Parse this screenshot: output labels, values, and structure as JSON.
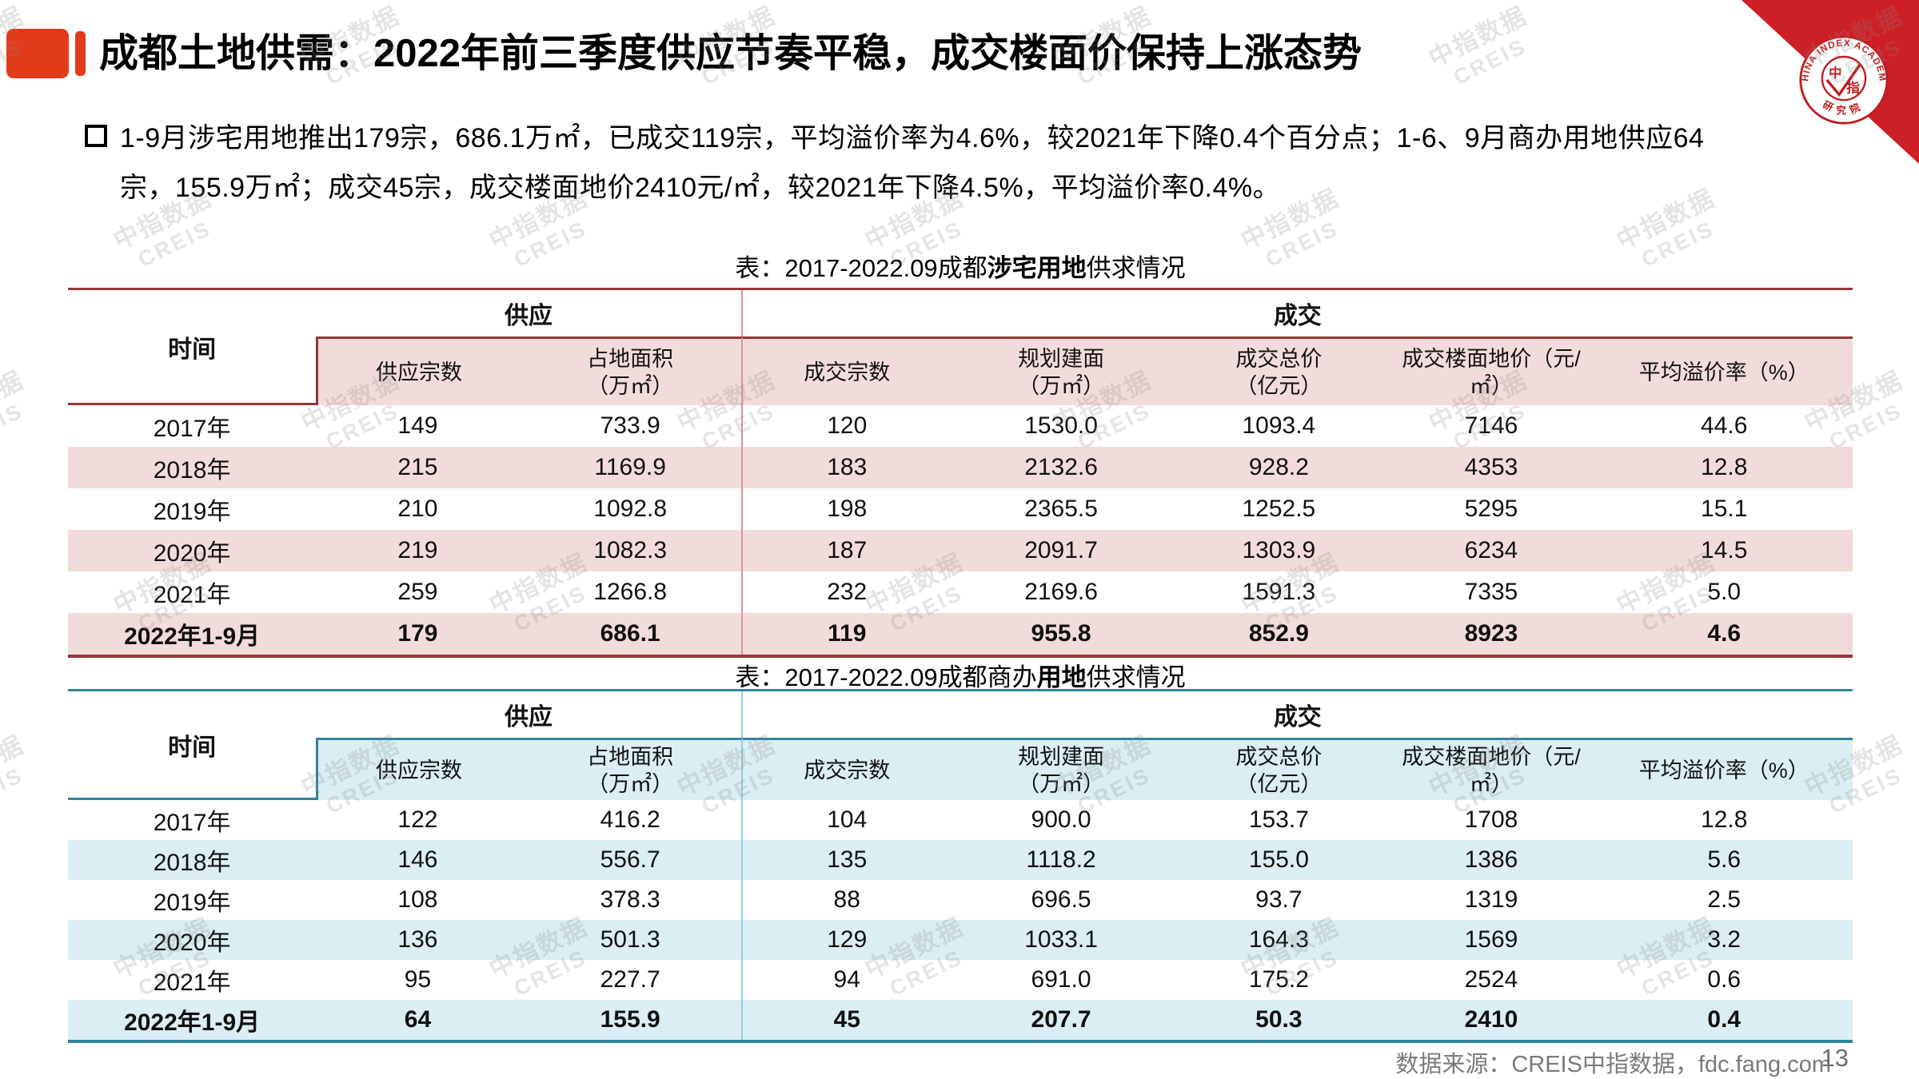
{
  "page": {
    "title": "成都土地供需：2022年前三季度供应节奏平稳，成交楼面价保持上涨态势",
    "bullet_lines": [
      "1-9月涉宅用地推出179宗，686.1万㎡，已成交119宗，平均溢价率为4.6%，较2021年下降0.4个百分点；1-6、9月商办用地供应64",
      "宗，155.9万㎡；成交45宗，成交楼面地价2410元/㎡，较2021年下降4.5%，平均溢价率0.4%。"
    ],
    "footer_source": "数据来源：CREIS中指数据，fdc.fang.com",
    "page_number": "13"
  },
  "watermark": {
    "line1": "中指数据",
    "line2": "CREIS"
  },
  "logo": {
    "arc_top": "CHINA INDEX ACADEMY",
    "arc_bottom": "研究院",
    "center_left": "中",
    "center_right": "指"
  },
  "tables": [
    {
      "title_prefix": "表：2017-2022.09成都",
      "title_bold": "涉宅用地",
      "title_suffix": "供求情况",
      "time_header": "时间",
      "group_headers": [
        "供应",
        "成交"
      ],
      "columns": [
        "供应宗数",
        "占地面积\n（万㎡）",
        "成交宗数",
        "规划建面\n（万㎡）",
        "成交总价\n（亿元）",
        "成交楼面地价（元/\n㎡）",
        "平均溢价率（%）"
      ],
      "rows": [
        {
          "label": "2017年",
          "values": [
            "149",
            "733.9",
            "120",
            "1530.0",
            "1093.4",
            "7146",
            "44.6"
          ]
        },
        {
          "label": "2018年",
          "values": [
            "215",
            "1169.9",
            "183",
            "2132.6",
            "928.2",
            "4353",
            "12.8"
          ]
        },
        {
          "label": "2019年",
          "values": [
            "210",
            "1092.8",
            "198",
            "2365.5",
            "1252.5",
            "5295",
            "15.1"
          ]
        },
        {
          "label": "2020年",
          "values": [
            "219",
            "1082.3",
            "187",
            "2091.7",
            "1303.9",
            "6234",
            "14.5"
          ]
        },
        {
          "label": "2021年",
          "values": [
            "259",
            "1266.8",
            "232",
            "2169.6",
            "1591.3",
            "7335",
            "5.0"
          ]
        },
        {
          "label": "2022年1-9月",
          "values": [
            "179",
            "686.1",
            "119",
            "955.8",
            "852.9",
            "8923",
            "4.6"
          ],
          "bold": true
        }
      ]
    },
    {
      "title_prefix": "表：2017-2022.09成都商办",
      "title_bold": "用地",
      "title_suffix": "供求情况",
      "time_header": "时间",
      "group_headers": [
        "供应",
        "成交"
      ],
      "columns": [
        "供应宗数",
        "占地面积\n（万㎡）",
        "成交宗数",
        "规划建面\n（万㎡）",
        "成交总价\n（亿元）",
        "成交楼面地价（元/\n㎡）",
        "平均溢价率（%）"
      ],
      "rows": [
        {
          "label": "2017年",
          "values": [
            "122",
            "416.2",
            "104",
            "900.0",
            "153.7",
            "1708",
            "12.8"
          ]
        },
        {
          "label": "2018年",
          "values": [
            "146",
            "556.7",
            "135",
            "1118.2",
            "155.0",
            "1386",
            "5.6"
          ]
        },
        {
          "label": "2019年",
          "values": [
            "108",
            "378.3",
            "88",
            "696.5",
            "93.7",
            "1319",
            "2.5"
          ]
        },
        {
          "label": "2020年",
          "values": [
            "136",
            "501.3",
            "129",
            "1033.1",
            "164.3",
            "1569",
            "3.2"
          ]
        },
        {
          "label": "2021年",
          "values": [
            "95",
            "227.7",
            "94",
            "691.0",
            "175.2",
            "2524",
            "0.6"
          ]
        },
        {
          "label": "2022年1-9月",
          "values": [
            "64",
            "155.9",
            "45",
            "207.7",
            "50.3",
            "2410",
            "0.4"
          ],
          "bold": true
        }
      ]
    }
  ]
}
